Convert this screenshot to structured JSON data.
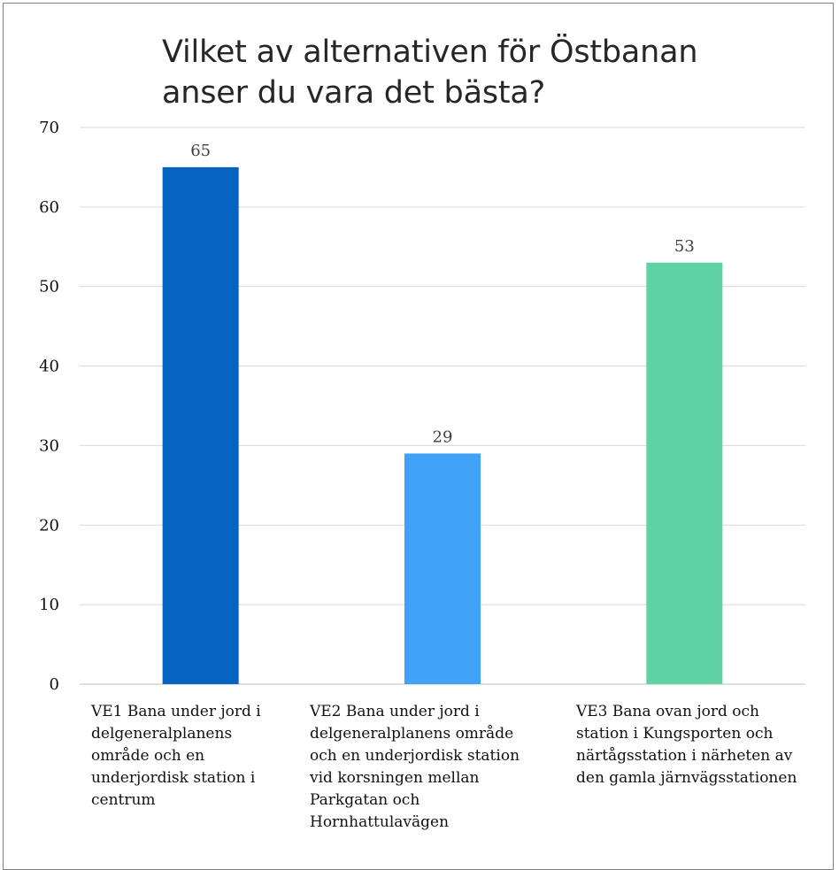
{
  "chart_data": {
    "type": "bar",
    "title": "Vilket av alternativen för Östbanan anser du vara det bästa?",
    "xlabel": "",
    "ylabel": "",
    "ylim": [
      0,
      70
    ],
    "yticks": [
      0,
      10,
      20,
      30,
      40,
      50,
      60,
      70
    ],
    "grid": true,
    "legend": "none",
    "categories": [
      "VE1 Bana under jord i delgeneralplanens område och en underjordisk station i centrum",
      "VE2 Bana under jord i delgeneralplanens område och en underjordisk station vid korsningen mellan Parkgatan och Hornhattulavägen",
      "VE3 Bana ovan jord och station i Kungsporten och närtågsstation i närheten av den gamla järnvägsstationen"
    ],
    "values": [
      65,
      29,
      53
    ],
    "colors": [
      "#0563c1",
      "#3fa2f7",
      "#5fd3a3"
    ]
  }
}
